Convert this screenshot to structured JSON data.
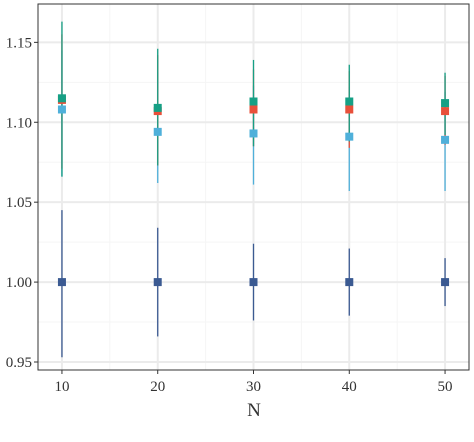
{
  "chart_data": {
    "type": "scatter",
    "title": "",
    "xlabel": "N",
    "ylabel": "",
    "x": [
      10,
      20,
      30,
      40,
      50
    ],
    "x_ticks": [
      "10",
      "20",
      "30",
      "40",
      "50"
    ],
    "y_ticks": [
      "0.95",
      "1.00",
      "1.05",
      "1.10",
      "1.15"
    ],
    "xlim": [
      7.5,
      52.5
    ],
    "ylim": [
      0.945,
      1.174
    ],
    "grid": true,
    "legend": "none",
    "colors": {
      "panel_bg": "#ffffff",
      "grid_major": "#ebebeb",
      "grid_minor": "#f5f5f5",
      "border": "#333333"
    },
    "series": [
      {
        "color": "#3b5a92",
        "values": [
          1.0,
          1.0,
          1.0,
          1.0,
          1.0
        ],
        "lower": [
          0.953,
          0.966,
          0.976,
          0.979,
          0.985
        ],
        "upper": [
          1.045,
          1.034,
          1.024,
          1.021,
          1.015
        ]
      },
      {
        "color": "#4fb0da",
        "values": [
          1.108,
          1.094,
          1.093,
          1.091,
          1.089
        ],
        "lower": [
          1.066,
          1.062,
          1.061,
          1.057,
          1.057
        ],
        "upper": [
          1.145,
          1.131,
          1.123,
          1.122,
          1.119
        ]
      },
      {
        "color": "#e8503a",
        "values": [
          1.114,
          1.107,
          1.108,
          1.108,
          1.107
        ],
        "lower": [
          1.071,
          1.073,
          1.085,
          1.084,
          1.086
        ],
        "upper": [
          1.155,
          1.142,
          1.133,
          1.132,
          1.129
        ]
      },
      {
        "color": "#16a085",
        "values": [
          1.115,
          1.109,
          1.113,
          1.113,
          1.112
        ],
        "lower": [
          1.066,
          1.073,
          1.085,
          1.088,
          1.092
        ],
        "upper": [
          1.163,
          1.146,
          1.139,
          1.136,
          1.131
        ]
      }
    ]
  }
}
